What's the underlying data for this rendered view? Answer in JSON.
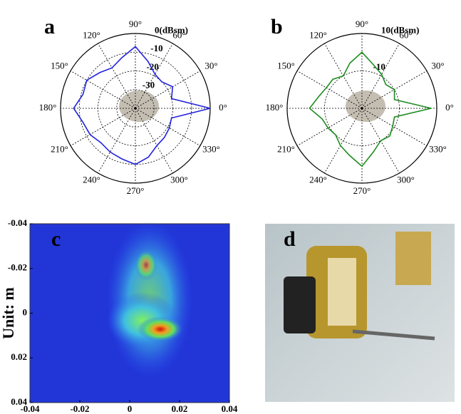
{
  "chart_data": [
    {
      "type": "polar",
      "panel": "a",
      "theta": [
        0,
        15,
        30,
        45,
        60,
        75,
        90,
        105,
        120,
        135,
        150,
        165,
        180,
        195,
        210,
        225,
        240,
        255,
        270,
        285,
        300,
        315,
        330,
        345
      ],
      "series": [
        {
          "color": "#2222dd",
          "values": [
            0,
            -20,
            -17,
            -20,
            -19,
            -14,
            -7,
            -12,
            -15,
            -13,
            -10,
            -11,
            -7,
            -11,
            -12,
            -14,
            -13,
            -12,
            -10,
            -13,
            -17,
            -18,
            -19,
            -20
          ]
        }
      ],
      "rlim": [
        -40,
        0
      ],
      "rticks": [
        -30,
        -20,
        -10,
        {
          "value": 0,
          "label": "0(dBsm)"
        }
      ],
      "thetaticks": [
        {
          "value": 0,
          "label": "0°"
        },
        {
          "value": 30,
          "label": "30°"
        },
        {
          "value": 60,
          "label": "60°"
        },
        {
          "value": 90,
          "label": "90°"
        },
        {
          "value": 120,
          "label": "120°"
        },
        {
          "value": 150,
          "label": "150°"
        },
        {
          "value": 180,
          "label": "180°"
        },
        {
          "value": 210,
          "label": "210°"
        },
        {
          "value": 240,
          "label": "240°"
        },
        {
          "value": 270,
          "label": "270°"
        },
        {
          "value": 300,
          "label": "300°"
        },
        {
          "value": 330,
          "label": "330°"
        }
      ]
    },
    {
      "type": "polar",
      "panel": "b",
      "theta": [
        0,
        15,
        30,
        45,
        60,
        75,
        90,
        105,
        120,
        135,
        150,
        165,
        180,
        195,
        210,
        225,
        240,
        255,
        270,
        285,
        300,
        315,
        330,
        345
      ],
      "series": [
        {
          "color": "#1e8c1e",
          "values": [
            7,
            -12,
            -10,
            -12,
            -9,
            -6,
            0,
            -5,
            -10,
            -8,
            -8,
            -6,
            -2,
            -8,
            -9,
            -10,
            -7,
            -4,
            1,
            -6,
            -10,
            -9,
            -11,
            -12
          ]
        }
      ],
      "rlim": [
        -30,
        10
      ],
      "rticks": [
        -10,
        {
          "value": 10,
          "label": "10(dBsm)"
        }
      ],
      "thetaticks": [
        {
          "value": 0,
          "label": "0°"
        },
        {
          "value": 30,
          "label": "30°"
        },
        {
          "value": 60,
          "label": "60°"
        },
        {
          "value": 90,
          "label": "90°"
        },
        {
          "value": 120,
          "label": "120°"
        },
        {
          "value": 150,
          "label": "150°"
        },
        {
          "value": 180,
          "label": "180°"
        },
        {
          "value": 210,
          "label": "210°"
        },
        {
          "value": 240,
          "label": "240°"
        },
        {
          "value": 270,
          "label": "270°"
        },
        {
          "value": 300,
          "label": "300°"
        },
        {
          "value": 330,
          "label": "330°"
        }
      ]
    },
    {
      "type": "image",
      "panel": "c",
      "ylabel": "Unit: m",
      "xlim": [
        -0.04,
        0.04
      ],
      "ylim": [
        -0.04,
        0.04
      ],
      "xticks": [
        -0.04,
        -0.02,
        0,
        0.02,
        0.04
      ],
      "yticks": [
        -0.04,
        -0.02,
        0,
        0.02,
        0.04
      ]
    }
  ],
  "photo": {
    "panel": "d"
  }
}
